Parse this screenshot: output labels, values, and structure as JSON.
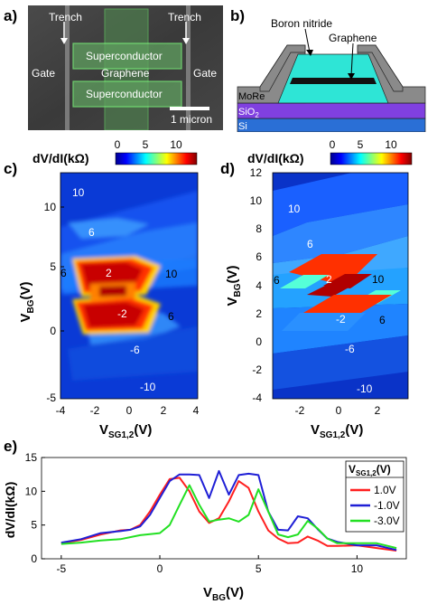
{
  "panel_a": {
    "letter": "a)",
    "labels": {
      "trench_left": "Trench",
      "trench_right": "Trench",
      "superconductor_top": "Superconductor",
      "graphene": "Graphene",
      "superconductor_bottom": "Superconductor",
      "gate_left": "Gate",
      "gate_right": "Gate",
      "scalebar": "1 micron"
    }
  },
  "panel_b": {
    "letter": "b)",
    "labels": {
      "boron_nitride": "Boron nitride",
      "graphene": "Graphene",
      "more": "MoRe",
      "sio2_base": "SiO",
      "sio2_sub": "2",
      "si": "Si"
    },
    "colors": {
      "more": "#8a8a8a",
      "hbn": "#2ee5d6",
      "graphene": "#111111",
      "sio2": "#8040e0",
      "si": "#2a6fd6"
    }
  },
  "colorbar": {
    "label_base": "dV/dI(k",
    "label_omega": "Ω",
    "label_close": ")",
    "ticks": [
      "0",
      "5",
      "10"
    ],
    "range": [
      0,
      12
    ]
  },
  "panel_c": {
    "letter": "c)",
    "xlabel_base": "V",
    "xlabel_sub": "SG1,2",
    "xlabel_unit": "(V)",
    "ylabel_base": "V",
    "ylabel_sub": "BG",
    "ylabel_unit": "(V)",
    "xticks": [
      "-4",
      "-2",
      "0",
      "2",
      "4"
    ],
    "yticks": [
      "10",
      "5",
      "0",
      "-5"
    ],
    "region_labels": [
      "10",
      "6",
      "6",
      "2",
      "10",
      "-2",
      "6",
      "-6",
      "-10"
    ]
  },
  "panel_d": {
    "letter": "d)",
    "xlabel_base": "V",
    "xlabel_sub": "SG1,2",
    "xlabel_unit": "(V)",
    "ylabel_base": "V",
    "ylabel_sub": "BG",
    "ylabel_unit": "(V)",
    "xticks": [
      "-2",
      "0",
      "2"
    ],
    "yticks": [
      "12",
      "10",
      "8",
      "6",
      "4",
      "2",
      "0",
      "-2",
      "-4"
    ],
    "region_labels": [
      "10",
      "6",
      "6",
      "2",
      "10",
      "-2",
      "6",
      "-6",
      "-10"
    ]
  },
  "panel_e": {
    "letter": "e)",
    "xlabel_base": "V",
    "xlabel_sub": "BG",
    "xlabel_unit": "(V)",
    "ylabel": "dV/dI(kΩ)",
    "legend_title_base": "V",
    "legend_title_sub": "SG1,2",
    "legend_title_unit": "(V)"
  },
  "chart_data": {
    "type": "line",
    "xlabel": "VBG(V)",
    "ylabel": "dV/dI(kΩ)",
    "xlim": [
      -6,
      12.5
    ],
    "ylim": [
      0,
      15
    ],
    "xticks": [
      -5,
      0,
      5,
      10
    ],
    "yticks": [
      0,
      5,
      10,
      15
    ],
    "legend_position": "right",
    "series": [
      {
        "name": "1.0V",
        "color": "#ff1f1f",
        "x": [
          -5,
          -4,
          -3,
          -2,
          -1.5,
          -1,
          -0.5,
          0,
          0.5,
          1,
          1.5,
          2,
          2.5,
          3,
          3.5,
          4,
          4.5,
          5,
          5.5,
          6,
          6.5,
          7,
          7.5,
          8,
          8.5,
          9,
          10,
          11,
          12
        ],
        "y": [
          2.3,
          2.8,
          3.6,
          4.2,
          4.3,
          5.0,
          7.0,
          9.5,
          11.8,
          12.0,
          10.0,
          7.0,
          5.3,
          6.0,
          8.5,
          11.5,
          10.5,
          7.0,
          4.2,
          3.0,
          2.3,
          2.4,
          3.3,
          2.7,
          1.9,
          1.9,
          2.0,
          1.6,
          1.2
        ]
      },
      {
        "name": "-1.0V",
        "color": "#1f1fd6",
        "x": [
          -5,
          -4,
          -3,
          -2,
          -1.5,
          -1,
          -0.5,
          0,
          0.5,
          1,
          1.5,
          2,
          2.5,
          3,
          3.5,
          4,
          4.5,
          5,
          5.5,
          6,
          6.5,
          7,
          7.5,
          8,
          8.5,
          9,
          10,
          11,
          12
        ],
        "y": [
          2.4,
          2.9,
          3.8,
          4.1,
          4.3,
          4.8,
          6.5,
          9.0,
          11.5,
          12.5,
          12.5,
          12.4,
          9.0,
          13.0,
          9.5,
          12.4,
          12.6,
          12.4,
          7.0,
          4.3,
          4.2,
          6.3,
          6.0,
          4.4,
          3.0,
          2.5,
          2.0,
          2.0,
          1.3
        ]
      },
      {
        "name": "-3.0V",
        "color": "#22e022",
        "x": [
          -5,
          -4,
          -3,
          -2,
          -1,
          0,
          0.5,
          1,
          1.5,
          2,
          2.5,
          3,
          3.5,
          4,
          4.5,
          5,
          5.5,
          6,
          6.5,
          7,
          7.5,
          8,
          8.5,
          9,
          10,
          11,
          12
        ],
        "y": [
          2.2,
          2.4,
          2.7,
          2.9,
          3.5,
          3.8,
          5.0,
          8.0,
          10.9,
          8.0,
          5.5,
          5.8,
          6.0,
          5.5,
          6.5,
          10.3,
          7.0,
          3.6,
          3.2,
          3.6,
          5.6,
          4.5,
          3.0,
          2.3,
          2.3,
          2.3,
          1.6
        ]
      }
    ]
  }
}
